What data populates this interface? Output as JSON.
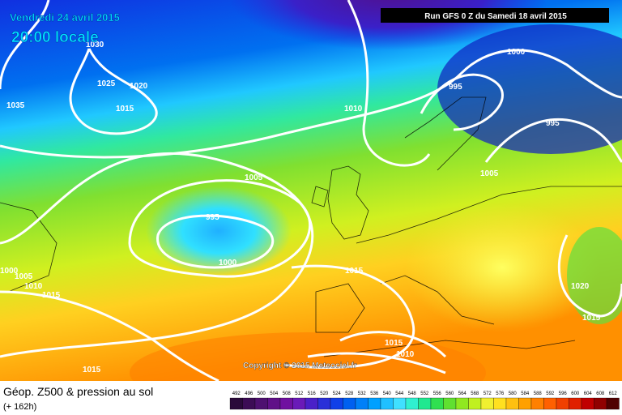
{
  "header": {
    "date": "Vendredi 24 avril 2015",
    "time": "20:00 locale",
    "run": "Run GFS 0 Z du Samedi 18 avril 2015"
  },
  "isobars": [
    1030,
    1025,
    1020,
    1015,
    1035,
    1010,
    995,
    1000,
    995,
    1005,
    995,
    1000,
    1005,
    1015,
    1000,
    1005,
    1010,
    1015,
    1020,
    1015,
    1015,
    1010,
    1015
  ],
  "copyright": "Copyright © 2015 Meteociel.fr",
  "footer": {
    "title": "Géop. Z500 & pression au sol",
    "lead": "(+ 162h)"
  },
  "legend": {
    "values": [
      492,
      496,
      500,
      504,
      508,
      512,
      516,
      520,
      524,
      528,
      532,
      536,
      540,
      544,
      548,
      552,
      556,
      560,
      564,
      568,
      572,
      576,
      580,
      584,
      588,
      592,
      596,
      600,
      604,
      608,
      612
    ],
    "colors": [
      "#2a0a3a",
      "#3c0c55",
      "#4e1070",
      "#601088",
      "#7010a0",
      "#6a1ab8",
      "#4a20c8",
      "#2a30d8",
      "#1040e8",
      "#0060f0",
      "#0080f8",
      "#00a0ff",
      "#20c0ff",
      "#40e0ff",
      "#30f0d0",
      "#20e890",
      "#30e050",
      "#60e030",
      "#90e820",
      "#c0f020",
      "#f0f030",
      "#ffe020",
      "#ffc010",
      "#ffa000",
      "#ff8000",
      "#ff6000",
      "#f04000",
      "#e02000",
      "#c00000",
      "#900000",
      "#500000"
    ]
  }
}
